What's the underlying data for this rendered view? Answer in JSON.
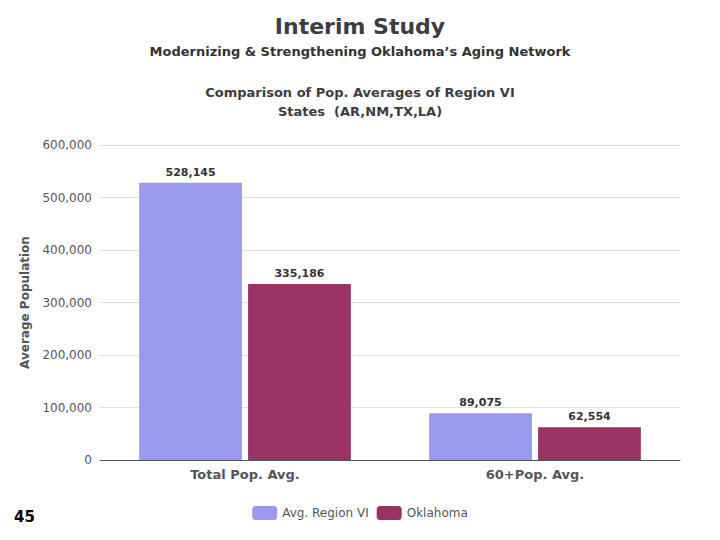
{
  "chart_data": {
    "type": "bar",
    "title": "Interim Study",
    "subtitle": "Modernizing & Strengthening Oklahoma’s Aging Network",
    "chart_title": "Comparison of Pop. Averages of Region VI\nStates  (AR,NM,TX,LA)",
    "page_number": "45",
    "categories": [
      "Total Pop. Avg.",
      "60+Pop. Avg."
    ],
    "series": [
      {
        "name": "Avg. Region VI",
        "color": "#9999EE",
        "values": [
          528145,
          89075
        ],
        "value_labels": [
          "528,145",
          "89,075"
        ]
      },
      {
        "name": "Oklahoma",
        "color": "#993366",
        "values": [
          335186,
          62554
        ],
        "value_labels": [
          "335,186",
          "62,554"
        ]
      }
    ],
    "ylabel": "Average Population",
    "ylim": [
      0,
      600000
    ],
    "yticks": [
      0,
      {
        "value": 100000,
        "label": "100,000"
      },
      {
        "value": 200000,
        "label": "200,000"
      },
      {
        "value": 300000,
        "label": "300,000"
      },
      {
        "value": 400000,
        "label": "400,000"
      },
      {
        "value": 500000,
        "label": "500,000"
      },
      {
        "value": 600000,
        "label": "600,000"
      }
    ],
    "grid": true,
    "legend": "bottom",
    "data_labels": true
  }
}
